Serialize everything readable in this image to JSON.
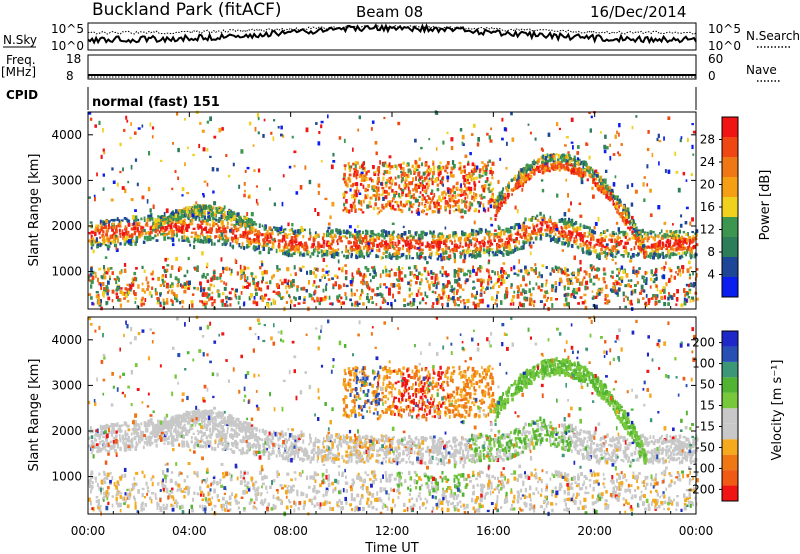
{
  "header": {
    "site": "Buckland Park (fitACF)",
    "beam": "Beam 08",
    "date": "16/Dec/2014"
  },
  "noise_panel": {
    "left_label": "N.Sky",
    "right_label": "N.Search",
    "left_ticks": [
      "10^5",
      "10^0"
    ],
    "right_ticks": [
      "10^5",
      "10^0"
    ]
  },
  "freq_panel": {
    "left_label_1": "Freq.",
    "left_label_2": "[MHz]",
    "right_label": "Nave",
    "left_ticks": [
      "18",
      "8"
    ],
    "right_ticks": [
      "60",
      "0"
    ]
  },
  "cpid": {
    "label": "CPID",
    "text": "normal (fast) 151"
  },
  "colors": {
    "power": [
      "#0a1ef0",
      "#1e4696",
      "#2e7d5a",
      "#3c9650",
      "#f0d21e",
      "#f5a014",
      "#f07814",
      "#f04614",
      "#f01414"
    ],
    "velocity": [
      "#f01414",
      "#f05a14",
      "#f07814",
      "#f5aa1e",
      "#c8c8c8",
      "#c8c8c8",
      "#78c83c",
      "#50b432",
      "#3c9678",
      "#2850b4",
      "#1e28c8"
    ]
  },
  "chart_data": [
    {
      "type": "heatmap",
      "title": "Power",
      "xlabel": "",
      "ylabel": "Slant Range [km]",
      "xlim": [
        "00:00",
        "24:00"
      ],
      "ylim": [
        180,
        4500
      ],
      "y_ticks": [
        1000,
        2000,
        3000,
        4000
      ],
      "colorbar": {
        "label": "Power [dB]",
        "ticks": [
          4,
          8,
          12,
          16,
          20,
          24,
          28
        ],
        "range": [
          0,
          32
        ]
      },
      "echo_bands": [
        {
          "name_hint": "lower band",
          "t_start": 0,
          "t_end": 24,
          "range_km": [
            300,
            1100
          ],
          "power_db": 20
        },
        {
          "name_hint": "main band",
          "t_start": 0,
          "t_end": 24,
          "range_km": [
            1500,
            2200
          ],
          "power_db": 28
        },
        {
          "name_hint": "upper arc",
          "t_start": 16,
          "t_end": 22,
          "range_km": [
            2600,
            3600
          ],
          "power_db": 22
        }
      ]
    },
    {
      "type": "heatmap",
      "title": "Velocity",
      "xlabel": "Time UT",
      "ylabel": "Slant Range [km]",
      "x_ticks": [
        "00:00",
        "04:00",
        "08:00",
        "12:00",
        "16:00",
        "20:00",
        "00:00"
      ],
      "xlim": [
        "00:00",
        "24:00"
      ],
      "ylim": [
        180,
        4500
      ],
      "y_ticks": [
        1000,
        2000,
        3000,
        4000
      ],
      "colorbar": {
        "label": "Velocity [m s⁻¹]",
        "ticks": [
          200,
          100,
          50,
          15,
          -15,
          -50,
          -100,
          -200
        ],
        "range": [
          -250,
          250
        ]
      }
    }
  ]
}
